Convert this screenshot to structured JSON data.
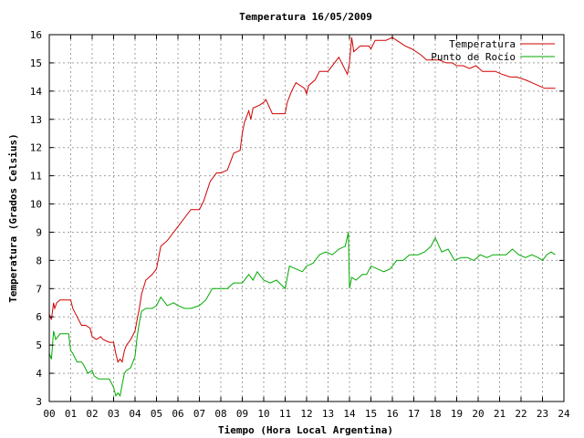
{
  "chart_data": {
    "type": "line",
    "title": "Temperatura 16/05/2009",
    "xlabel": "Tiempo (Hora Local Argentina)",
    "ylabel": "Temperatura (Grados Celsius)",
    "xlim": [
      0,
      24
    ],
    "ylim": [
      3,
      16
    ],
    "grid": true,
    "legend_position": "top-right",
    "x_tick_labels": [
      "00",
      "01",
      "02",
      "03",
      "04",
      "05",
      "06",
      "07",
      "08",
      "09",
      "10",
      "11",
      "12",
      "13",
      "14",
      "15",
      "16",
      "17",
      "18",
      "19",
      "20",
      "21",
      "22",
      "23",
      "24"
    ],
    "y_tick_labels": [
      "3",
      "4",
      "5",
      "6",
      "7",
      "8",
      "9",
      "10",
      "11",
      "12",
      "13",
      "14",
      "15",
      "16"
    ],
    "series": [
      {
        "name": "Temperatura",
        "color": "#d00000",
        "x": [
          0.0,
          0.1,
          0.2,
          0.25,
          0.35,
          0.5,
          0.7,
          1.0,
          1.1,
          1.3,
          1.5,
          1.7,
          1.9,
          2.0,
          2.2,
          2.4,
          2.5,
          2.8,
          3.0,
          3.1,
          3.2,
          3.3,
          3.4,
          3.5,
          3.6,
          3.8,
          4.0,
          4.1,
          4.2,
          4.3,
          4.5,
          4.8,
          5.0,
          5.2,
          5.5,
          5.8,
          6.0,
          6.3,
          6.6,
          7.0,
          7.2,
          7.5,
          7.7,
          7.8,
          8.0,
          8.3,
          8.5,
          8.6,
          8.9,
          9.0,
          9.1,
          9.3,
          9.4,
          9.5,
          9.8,
          10.0,
          10.1,
          10.4,
          10.5,
          11.0,
          11.1,
          11.3,
          11.5,
          11.9,
          12.0,
          12.1,
          12.4,
          12.6,
          12.8,
          13.0,
          13.5,
          13.9,
          14.0,
          14.1,
          14.2,
          14.5,
          14.9,
          15.0,
          15.2,
          15.5,
          15.7,
          16.0,
          16.2,
          16.6,
          16.9,
          17.3,
          17.6,
          17.9,
          18.2,
          18.5,
          18.8,
          19.0,
          19.3,
          19.6,
          19.9,
          20.2,
          20.5,
          20.8,
          21.1,
          21.5,
          21.8,
          22.2,
          22.5,
          22.8,
          23.1,
          23.3,
          23.6
        ],
        "values": [
          6.1,
          5.9,
          6.5,
          6.3,
          6.5,
          6.6,
          6.6,
          6.6,
          6.3,
          6.0,
          5.7,
          5.7,
          5.6,
          5.3,
          5.2,
          5.3,
          5.2,
          5.1,
          5.1,
          4.7,
          4.4,
          4.5,
          4.4,
          4.8,
          5.0,
          5.2,
          5.5,
          5.9,
          6.3,
          6.8,
          7.3,
          7.5,
          7.7,
          8.5,
          8.7,
          9.0,
          9.2,
          9.5,
          9.8,
          9.8,
          10.1,
          10.8,
          11.0,
          11.1,
          11.1,
          11.2,
          11.6,
          11.8,
          11.9,
          12.5,
          12.9,
          13.3,
          13.0,
          13.4,
          13.5,
          13.6,
          13.7,
          13.2,
          13.2,
          13.2,
          13.6,
          14.0,
          14.3,
          14.1,
          13.9,
          14.2,
          14.4,
          14.7,
          14.7,
          14.7,
          15.2,
          14.6,
          15.0,
          15.9,
          15.4,
          15.6,
          15.6,
          15.5,
          15.8,
          15.8,
          15.8,
          15.9,
          15.8,
          15.6,
          15.5,
          15.3,
          15.1,
          15.1,
          15.1,
          15.0,
          15.0,
          14.9,
          14.9,
          14.8,
          14.9,
          14.7,
          14.7,
          14.7,
          14.6,
          14.5,
          14.5,
          14.4,
          14.3,
          14.2,
          14.1,
          14.1,
          14.1
        ]
      },
      {
        "name": "Punto de Rocío",
        "color": "#00aa00",
        "x": [
          0.0,
          0.1,
          0.2,
          0.3,
          0.4,
          0.5,
          0.7,
          0.9,
          1.0,
          1.1,
          1.3,
          1.5,
          1.6,
          1.8,
          2.0,
          2.1,
          2.3,
          2.5,
          2.8,
          3.0,
          3.1,
          3.2,
          3.3,
          3.4,
          3.5,
          3.6,
          3.8,
          4.0,
          4.1,
          4.2,
          4.3,
          4.5,
          4.8,
          5.0,
          5.2,
          5.5,
          5.8,
          6.0,
          6.3,
          6.6,
          7.0,
          7.3,
          7.6,
          8.0,
          8.3,
          8.6,
          9.0,
          9.3,
          9.5,
          9.7,
          10.0,
          10.3,
          10.6,
          11.0,
          11.2,
          11.5,
          11.8,
          12.0,
          12.3,
          12.6,
          12.9,
          13.2,
          13.5,
          13.8,
          13.95,
          14.0,
          14.1,
          14.3,
          14.6,
          14.8,
          15.0,
          15.3,
          15.6,
          15.9,
          16.2,
          16.5,
          16.8,
          17.2,
          17.5,
          17.8,
          18.0,
          18.3,
          18.6,
          18.9,
          19.2,
          19.5,
          19.8,
          20.1,
          20.4,
          20.7,
          21.0,
          21.3,
          21.6,
          21.9,
          22.2,
          22.5,
          22.8,
          23.0,
          23.2,
          23.4,
          23.6
        ],
        "values": [
          4.7,
          4.5,
          5.5,
          5.2,
          5.3,
          5.4,
          5.4,
          5.4,
          4.8,
          4.7,
          4.4,
          4.4,
          4.3,
          4.0,
          4.1,
          3.9,
          3.8,
          3.8,
          3.8,
          3.5,
          3.2,
          3.3,
          3.2,
          3.6,
          4.0,
          4.1,
          4.2,
          4.6,
          5.3,
          5.8,
          6.2,
          6.3,
          6.3,
          6.4,
          6.7,
          6.4,
          6.5,
          6.4,
          6.3,
          6.3,
          6.4,
          6.6,
          7.0,
          7.0,
          7.0,
          7.2,
          7.2,
          7.5,
          7.3,
          7.6,
          7.3,
          7.2,
          7.3,
          7.0,
          7.8,
          7.7,
          7.6,
          7.8,
          7.9,
          8.2,
          8.3,
          8.2,
          8.4,
          8.5,
          9.0,
          7.0,
          7.4,
          7.3,
          7.5,
          7.5,
          7.8,
          7.7,
          7.6,
          7.7,
          8.0,
          8.0,
          8.2,
          8.2,
          8.3,
          8.5,
          8.8,
          8.3,
          8.4,
          8.0,
          8.1,
          8.1,
          8.0,
          8.2,
          8.1,
          8.2,
          8.2,
          8.2,
          8.4,
          8.2,
          8.1,
          8.2,
          8.1,
          8.0,
          8.2,
          8.3,
          8.2
        ]
      }
    ]
  }
}
